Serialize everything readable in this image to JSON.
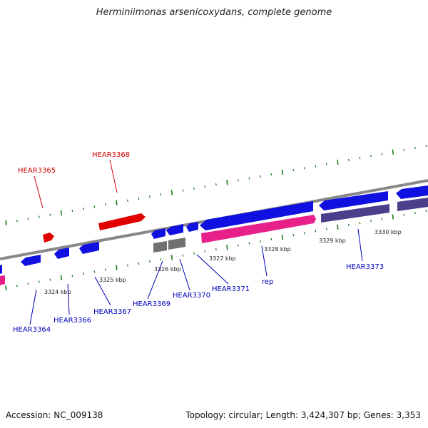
{
  "title": "Herminiimonas arsenicoxydans, complete genome",
  "footer": {
    "accession": "Accession: NC_009138",
    "topology": "Topology: circular; Length: 3,424,307 bp; Genes: 3,353"
  },
  "colors": {
    "backbone": "#888888",
    "tick": "#1a7a1a",
    "plus_strand_cds": "#e00000",
    "minus_strand_cds": "#1010e0",
    "pseudo": "#707070",
    "rna_pink": "#e8208a",
    "dark_purple": "#4a3f8a",
    "label_plus": "#cc0000",
    "label_minus": "#0000bb"
  },
  "scale_labels": [
    "3324 kbp",
    "3325 kbp",
    "3326 kbp",
    "3327 kbp",
    "3328 kbp",
    "3329 kbp",
    "3330 kbp"
  ],
  "gene_labels": {
    "hear3365": "HEAR3365",
    "hear3368": "HEAR3368",
    "hear3364": "HEAR3364",
    "hear3366": "HEAR3366",
    "hear3367": "HEAR3367",
    "hear3369": "HEAR3369",
    "hear3370": "HEAR3370",
    "hear3371": "HEAR3371",
    "rep": "rep",
    "hear3373": "HEAR3373"
  }
}
